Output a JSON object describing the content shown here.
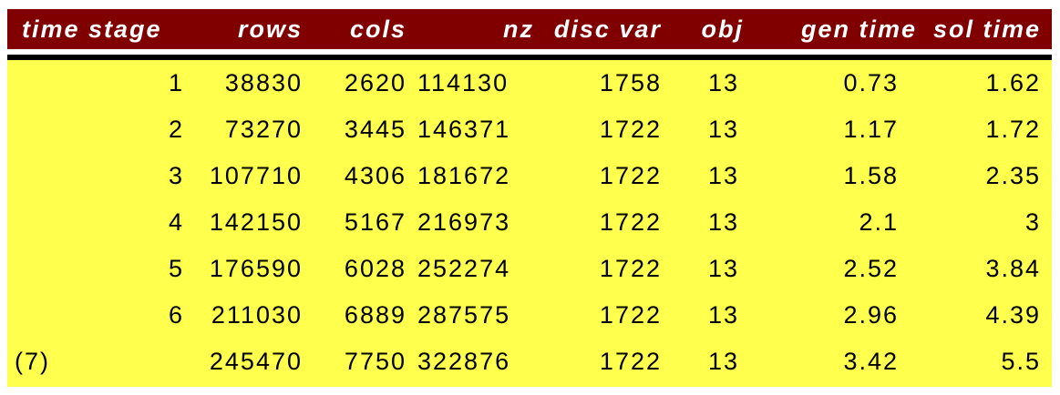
{
  "headers": {
    "time_stage": "time stage",
    "rows": "rows",
    "cols": "cols",
    "nz": "nz",
    "disc_var": "disc var",
    "obj": "obj",
    "gen_time": "gen time",
    "sol_time": "sol time"
  },
  "rows": [
    {
      "stage": "1",
      "rows": "38830",
      "cols": "2620",
      "nz": "114130",
      "disc_var": "1758",
      "obj": "13",
      "gen_time": "0.73",
      "sol_time": "1.62"
    },
    {
      "stage": "2",
      "rows": "73270",
      "cols": "3445",
      "nz": "146371",
      "disc_var": "1722",
      "obj": "13",
      "gen_time": "1.17",
      "sol_time": "1.72"
    },
    {
      "stage": "3",
      "rows": "107710",
      "cols": "4306",
      "nz": "181672",
      "disc_var": "1722",
      "obj": "13",
      "gen_time": "1.58",
      "sol_time": "2.35"
    },
    {
      "stage": "4",
      "rows": "142150",
      "cols": "5167",
      "nz": "216973",
      "disc_var": "1722",
      "obj": "13",
      "gen_time": "2.1",
      "sol_time": "3"
    },
    {
      "stage": "5",
      "rows": "176590",
      "cols": "6028",
      "nz": "252274",
      "disc_var": "1722",
      "obj": "13",
      "gen_time": "2.52",
      "sol_time": "3.84"
    },
    {
      "stage": "6",
      "rows": "211030",
      "cols": "6889",
      "nz": "287575",
      "disc_var": "1722",
      "obj": "13",
      "gen_time": "2.96",
      "sol_time": "4.39"
    },
    {
      "stage": "",
      "label": "(7)",
      "rows": "245470",
      "cols": "7750",
      "nz": "322876",
      "disc_var": "1722",
      "obj": "13",
      "gen_time": "3.42",
      "sol_time": "5.5"
    }
  ],
  "colors": {
    "header_bg": "#800000",
    "header_text": "#ffffff",
    "header_rule": "#000000",
    "body_bg": "#ffff4d",
    "body_text": "#000000"
  }
}
